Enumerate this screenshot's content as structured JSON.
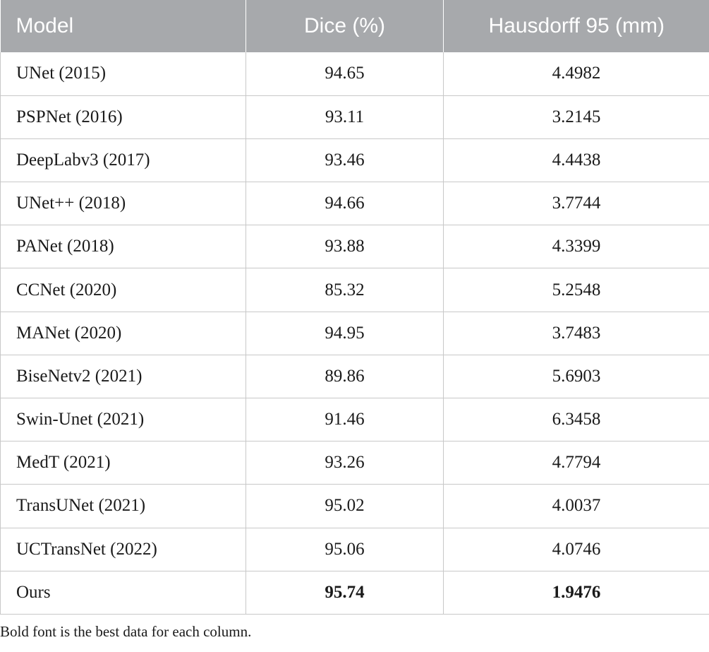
{
  "table": {
    "headers": [
      "Model",
      "Dice (%)",
      "Hausdorff 95 (mm)"
    ],
    "rows": [
      {
        "model": "UNet (2015)",
        "dice": "94.65",
        "hd95": "4.4982"
      },
      {
        "model": "PSPNet (2016)",
        "dice": "93.11",
        "hd95": "3.2145"
      },
      {
        "model": "DeepLabv3 (2017)",
        "dice": "93.46",
        "hd95": "4.4438"
      },
      {
        "model": "UNet++ (2018)",
        "dice": "94.66",
        "hd95": "3.7744"
      },
      {
        "model": "PANet (2018)",
        "dice": "93.88",
        "hd95": "4.3399"
      },
      {
        "model": "CCNet (2020)",
        "dice": "85.32",
        "hd95": "5.2548"
      },
      {
        "model": "MANet (2020)",
        "dice": "94.95",
        "hd95": "3.7483"
      },
      {
        "model": "BiseNetv2 (2021)",
        "dice": "89.86",
        "hd95": "5.6903"
      },
      {
        "model": "Swin-Unet (2021)",
        "dice": "91.46",
        "hd95": "6.3458"
      },
      {
        "model": "MedT (2021)",
        "dice": "93.26",
        "hd95": "4.7794"
      },
      {
        "model": "TransUNet (2021)",
        "dice": "95.02",
        "hd95": "4.0037"
      },
      {
        "model": "UCTransNet (2022)",
        "dice": "95.06",
        "hd95": "4.0746"
      },
      {
        "model": "Ours",
        "dice": "95.74",
        "hd95": "1.9476",
        "best": true
      }
    ]
  },
  "footnote": "Bold font is the best data for each column.",
  "colors": {
    "header_background": "#a7a9ac",
    "header_text": "#ffffff",
    "grid_line": "#c8c8c8"
  }
}
